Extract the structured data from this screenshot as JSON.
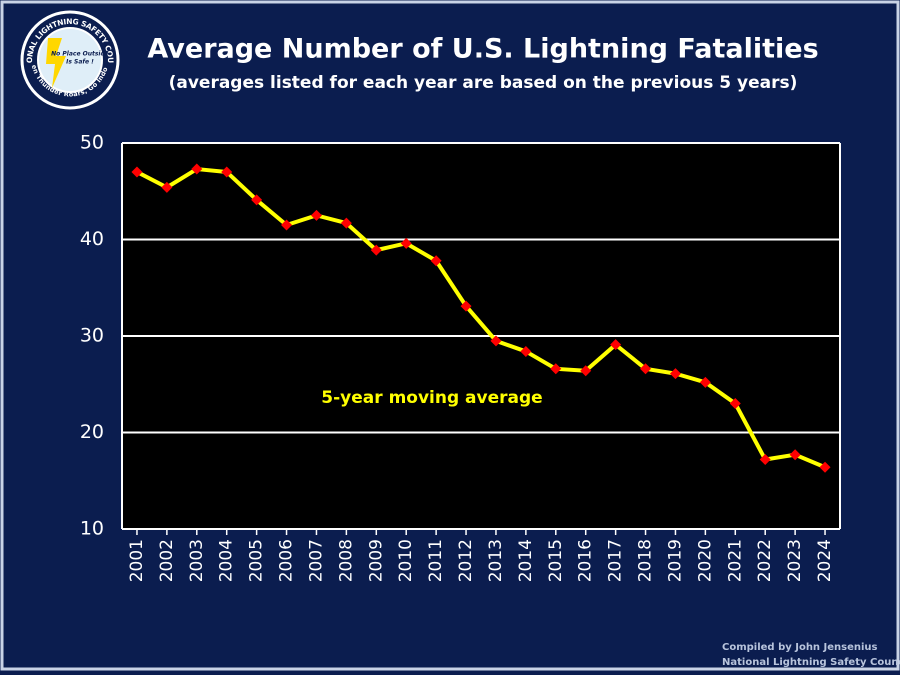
{
  "chart_data": {
    "type": "line",
    "title": "Average Number of U.S. Lightning Fatalities",
    "subtitle": "(averages listed for each year are based on the previous  5 years)",
    "annotation": "5-year moving average",
    "categories": [
      "2001",
      "2002",
      "2003",
      "2004",
      "2005",
      "2006",
      "2007",
      "2008",
      "2009",
      "2010",
      "2011",
      "2012",
      "2013",
      "2014",
      "2015",
      "2016",
      "2017",
      "2018",
      "2019",
      "2020",
      "2021",
      "2022",
      "2023",
      "2024"
    ],
    "values": [
      47.0,
      45.4,
      47.3,
      47.0,
      44.1,
      41.5,
      42.5,
      41.7,
      38.9,
      39.6,
      37.8,
      33.1,
      29.5,
      28.4,
      26.6,
      26.4,
      29.1,
      26.6,
      26.1,
      25.2,
      23.0,
      17.2,
      17.7,
      16.4
    ],
    "color": "#ffff00",
    "marker_color": "#ff0000",
    "ylim": [
      10,
      50
    ],
    "yticks": [
      10,
      20,
      30,
      40,
      50
    ],
    "grid": true
  },
  "logo": {
    "ring_top": "NATIONAL LIGHTNING SAFETY COUNCIL",
    "ring_bottom": "When Thunder Roars, Go Indoors!",
    "center_1": "No Place Outside",
    "center_2": "Is Safe !"
  },
  "footer": [
    "Compiled by John Jensenius",
    "National Lightning Safety Council"
  ]
}
